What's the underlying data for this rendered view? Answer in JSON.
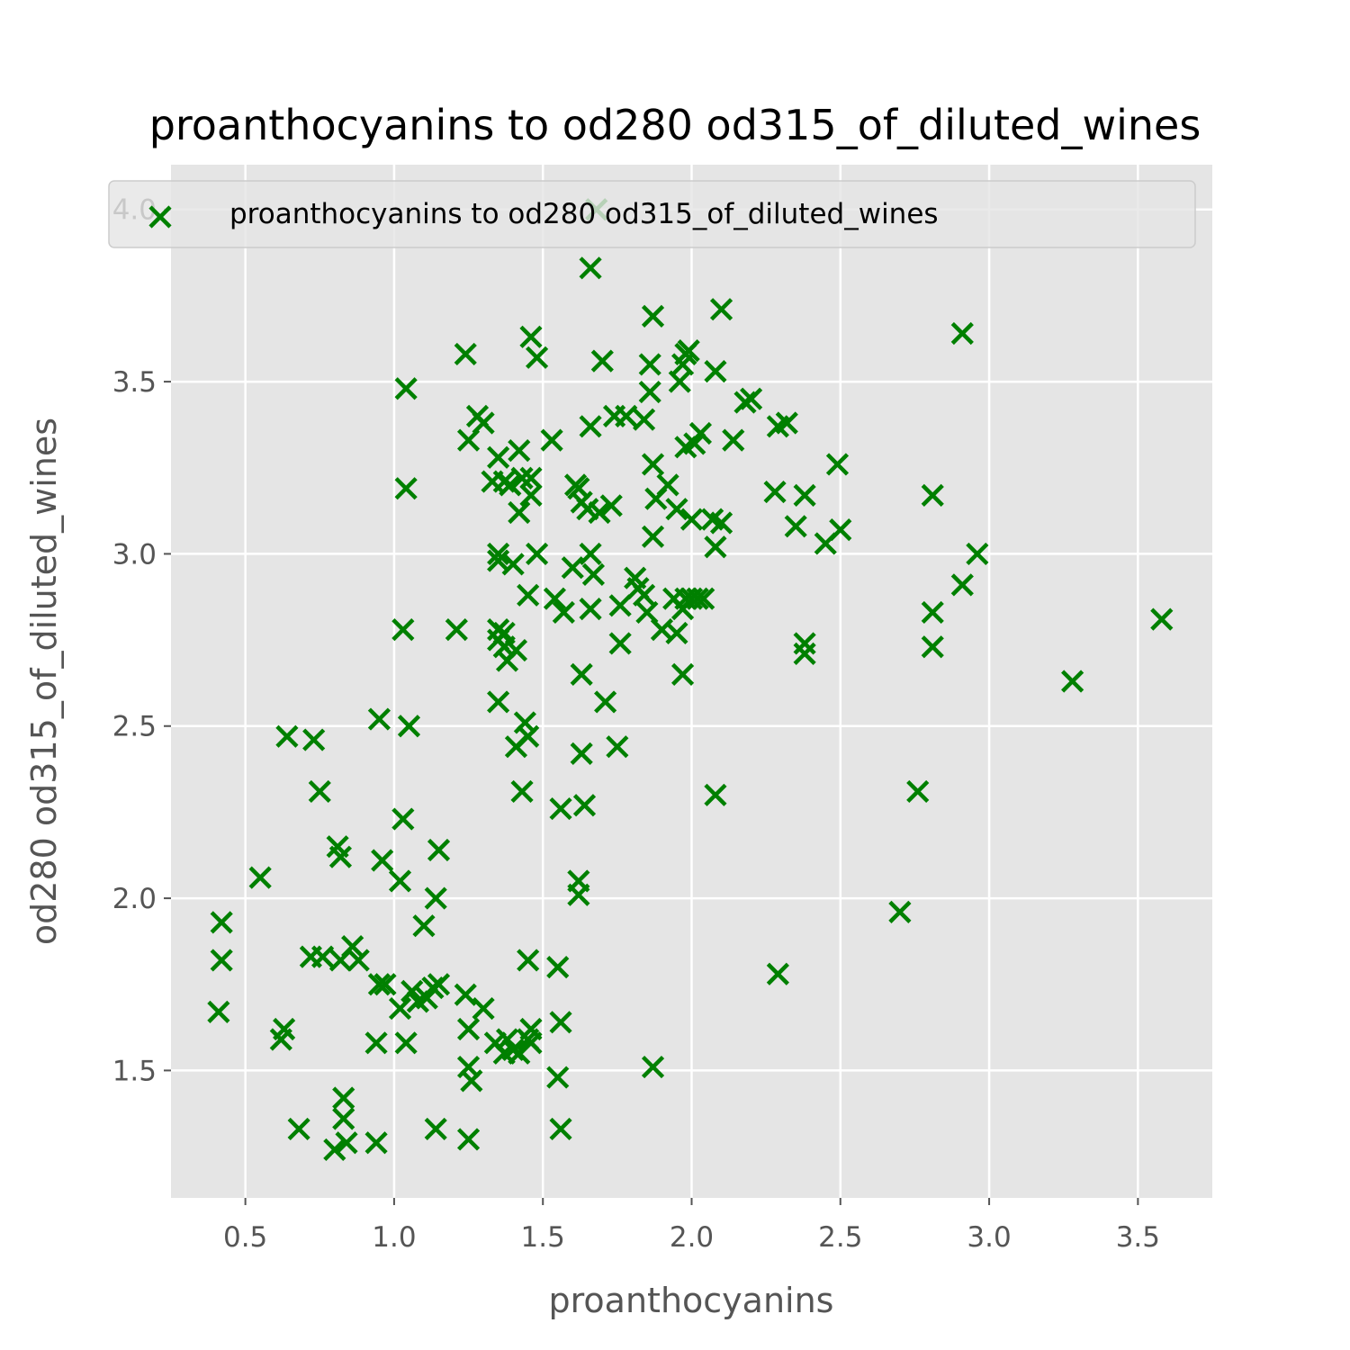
{
  "chart_data": {
    "type": "scatter",
    "title": "proanthocyanins to od280 od315_of_diluted_wines",
    "xlabel": "proanthocyanins",
    "ylabel": "od280 od315_of_diluted_wines",
    "xlim": [
      0.25,
      3.75
    ],
    "ylim": [
      1.13,
      4.13
    ],
    "xticks": [
      "0.5",
      "1.0",
      "1.5",
      "2.0",
      "2.5",
      "3.0",
      "3.5"
    ],
    "yticks": [
      "1.5",
      "2.0",
      "2.5",
      "3.0",
      "3.5",
      "4.0"
    ],
    "grid": true,
    "legend_position": "top",
    "marker": "x",
    "series": [
      {
        "name": "proanthocyanins to od280 od315_of_diluted_wines",
        "color": "#008000",
        "points": [
          [
            0.41,
            1.67
          ],
          [
            0.42,
            1.82
          ],
          [
            0.42,
            1.93
          ],
          [
            0.55,
            2.06
          ],
          [
            0.62,
            1.59
          ],
          [
            0.63,
            1.62
          ],
          [
            0.64,
            2.47
          ],
          [
            0.68,
            1.33
          ],
          [
            0.72,
            1.83
          ],
          [
            0.73,
            2.46
          ],
          [
            0.75,
            2.31
          ],
          [
            0.76,
            1.83
          ],
          [
            0.8,
            1.27
          ],
          [
            0.81,
            2.15
          ],
          [
            0.82,
            1.82
          ],
          [
            0.82,
            2.12
          ],
          [
            0.83,
            1.42
          ],
          [
            0.83,
            1.36
          ],
          [
            0.84,
            1.29
          ],
          [
            0.86,
            1.86
          ],
          [
            0.88,
            1.82
          ],
          [
            0.94,
            1.29
          ],
          [
            0.94,
            1.58
          ],
          [
            0.95,
            2.52
          ],
          [
            0.95,
            1.75
          ],
          [
            0.96,
            2.11
          ],
          [
            0.97,
            1.75
          ],
          [
            1.02,
            2.05
          ],
          [
            1.02,
            1.68
          ],
          [
            1.03,
            2.78
          ],
          [
            1.03,
            2.23
          ],
          [
            1.04,
            3.48
          ],
          [
            1.04,
            3.19
          ],
          [
            1.04,
            1.58
          ],
          [
            1.05,
            2.5
          ],
          [
            1.06,
            1.73
          ],
          [
            1.08,
            1.7
          ],
          [
            1.1,
            1.92
          ],
          [
            1.11,
            1.71
          ],
          [
            1.13,
            1.74
          ],
          [
            1.14,
            1.33
          ],
          [
            1.14,
            2.0
          ],
          [
            1.15,
            2.14
          ],
          [
            1.15,
            1.75
          ],
          [
            1.21,
            2.78
          ],
          [
            1.24,
            1.72
          ],
          [
            1.24,
            3.58
          ],
          [
            1.25,
            1.3
          ],
          [
            1.25,
            1.62
          ],
          [
            1.25,
            3.33
          ],
          [
            1.25,
            1.51
          ],
          [
            1.26,
            1.47
          ],
          [
            1.28,
            3.4
          ],
          [
            1.3,
            3.38
          ],
          [
            1.3,
            1.68
          ],
          [
            1.33,
            3.21
          ],
          [
            1.34,
            1.58
          ],
          [
            1.35,
            2.57
          ],
          [
            1.35,
            2.98
          ],
          [
            1.35,
            2.75
          ],
          [
            1.35,
            2.78
          ],
          [
            1.35,
            3.0
          ],
          [
            1.35,
            3.28
          ],
          [
            1.37,
            2.77
          ],
          [
            1.37,
            1.55
          ],
          [
            1.37,
            2.73
          ],
          [
            1.37,
            3.21
          ],
          [
            1.38,
            2.69
          ],
          [
            1.38,
            1.59
          ],
          [
            1.39,
            3.2
          ],
          [
            1.4,
            2.97
          ],
          [
            1.4,
            1.56
          ],
          [
            1.41,
            2.72
          ],
          [
            1.41,
            2.44
          ],
          [
            1.42,
            3.3
          ],
          [
            1.42,
            3.12
          ],
          [
            1.42,
            1.55
          ],
          [
            1.43,
            3.22
          ],
          [
            1.43,
            2.31
          ],
          [
            1.44,
            2.51
          ],
          [
            1.45,
            2.47
          ],
          [
            1.45,
            2.88
          ],
          [
            1.45,
            1.82
          ],
          [
            1.45,
            1.59
          ],
          [
            1.46,
            1.62
          ],
          [
            1.46,
            3.63
          ],
          [
            1.46,
            3.17
          ],
          [
            1.46,
            3.22
          ],
          [
            1.46,
            1.58
          ],
          [
            1.48,
            3.57
          ],
          [
            1.48,
            3.0
          ],
          [
            1.53,
            3.33
          ],
          [
            1.54,
            2.87
          ],
          [
            1.55,
            1.8
          ],
          [
            1.55,
            1.48
          ],
          [
            1.56,
            2.26
          ],
          [
            1.56,
            1.33
          ],
          [
            1.56,
            1.64
          ],
          [
            1.57,
            2.83
          ],
          [
            1.6,
            2.96
          ],
          [
            1.61,
            3.2
          ],
          [
            1.62,
            3.19
          ],
          [
            1.62,
            2.05
          ],
          [
            1.62,
            2.01
          ],
          [
            1.63,
            2.65
          ],
          [
            1.63,
            2.42
          ],
          [
            1.63,
            3.15
          ],
          [
            1.64,
            2.27
          ],
          [
            1.65,
            3.13
          ],
          [
            1.66,
            3.83
          ],
          [
            1.66,
            3.0
          ],
          [
            1.66,
            2.84
          ],
          [
            1.66,
            3.37
          ],
          [
            1.67,
            2.94
          ],
          [
            1.69,
            3.12
          ],
          [
            1.7,
            3.56
          ],
          [
            1.71,
            2.57
          ],
          [
            1.73,
            3.14
          ],
          [
            1.74,
            3.4
          ],
          [
            1.75,
            2.44
          ],
          [
            1.76,
            2.74
          ],
          [
            1.76,
            2.85
          ],
          [
            1.78,
            3.4
          ],
          [
            1.81,
            2.93
          ],
          [
            1.82,
            2.9
          ],
          [
            1.84,
            3.39
          ],
          [
            1.84,
            2.88
          ],
          [
            1.85,
            2.83
          ],
          [
            1.86,
            3.55
          ],
          [
            1.86,
            3.47
          ],
          [
            1.87,
            1.51
          ],
          [
            1.87,
            3.26
          ],
          [
            1.87,
            3.05
          ],
          [
            1.87,
            3.69
          ],
          [
            1.88,
            3.16
          ],
          [
            1.9,
            2.78
          ],
          [
            1.92,
            3.2
          ],
          [
            1.94,
            2.87
          ],
          [
            1.95,
            3.13
          ],
          [
            1.95,
            2.77
          ],
          [
            1.96,
            3.5
          ],
          [
            1.97,
            3.55
          ],
          [
            1.97,
            2.65
          ],
          [
            1.97,
            2.84
          ],
          [
            1.98,
            2.87
          ],
          [
            1.98,
            3.58
          ],
          [
            1.98,
            3.31
          ],
          [
            1.99,
            3.59
          ],
          [
            2.0,
            2.87
          ],
          [
            2.0,
            3.1
          ],
          [
            2.01,
            3.32
          ],
          [
            2.02,
            2.87
          ],
          [
            2.03,
            3.35
          ],
          [
            2.04,
            2.87
          ],
          [
            2.07,
            3.1
          ],
          [
            2.08,
            3.53
          ],
          [
            2.08,
            3.02
          ],
          [
            2.08,
            2.3
          ],
          [
            2.1,
            3.71
          ],
          [
            2.1,
            3.09
          ],
          [
            2.14,
            3.33
          ],
          [
            2.18,
            3.44
          ],
          [
            2.2,
            3.45
          ],
          [
            2.28,
            3.18
          ],
          [
            2.29,
            1.78
          ],
          [
            2.29,
            3.37
          ],
          [
            2.32,
            3.38
          ],
          [
            2.35,
            3.08
          ],
          [
            2.38,
            2.74
          ],
          [
            2.38,
            3.17
          ],
          [
            2.38,
            2.71
          ],
          [
            2.45,
            3.03
          ],
          [
            2.49,
            3.26
          ],
          [
            2.5,
            3.07
          ],
          [
            2.7,
            1.96
          ],
          [
            2.76,
            2.31
          ],
          [
            2.81,
            3.17
          ],
          [
            2.81,
            2.73
          ],
          [
            2.81,
            2.83
          ],
          [
            2.91,
            2.91
          ],
          [
            2.91,
            3.64
          ],
          [
            2.96,
            3.0
          ],
          [
            3.28,
            2.63
          ],
          [
            3.58,
            2.81
          ],
          [
            1.68,
            4.0
          ]
        ]
      }
    ]
  }
}
